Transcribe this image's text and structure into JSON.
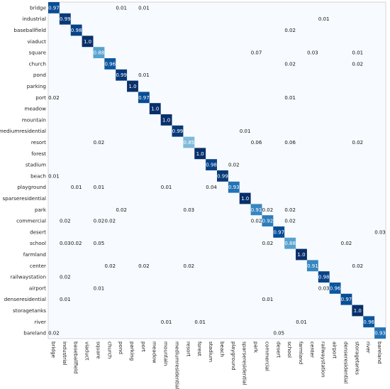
{
  "chart_data": {
    "type": "heatmap",
    "title": "",
    "xlabel": "",
    "ylabel": "",
    "colormap": "Blues",
    "value_range": [
      0,
      1
    ],
    "grid": false,
    "categories": [
      "bridge",
      "industrial",
      "baseballfield",
      "viaduct",
      "square",
      "church",
      "pond",
      "parking",
      "port",
      "meadow",
      "mountain",
      "mediumresidential",
      "resort",
      "forest",
      "stadium",
      "beach",
      "playground",
      "sparseresidential",
      "park",
      "commercial",
      "desert",
      "school",
      "farmland",
      "center",
      "railwaystation",
      "airport",
      "denseresidential",
      "storagetanks",
      "river",
      "bareland"
    ],
    "cells": [
      {
        "row": "bridge",
        "col": "bridge",
        "label": "0.97"
      },
      {
        "row": "bridge",
        "col": "pond",
        "label": "0.01"
      },
      {
        "row": "bridge",
        "col": "port",
        "label": "0.01"
      },
      {
        "row": "industrial",
        "col": "industrial",
        "label": "0.99"
      },
      {
        "row": "industrial",
        "col": "railwaystation",
        "label": "0.01"
      },
      {
        "row": "baseballfield",
        "col": "baseballfield",
        "label": "0.98"
      },
      {
        "row": "baseballfield",
        "col": "school",
        "label": "0.02"
      },
      {
        "row": "viaduct",
        "col": "viaduct",
        "label": "1.0"
      },
      {
        "row": "square",
        "col": "square",
        "label": "0.88"
      },
      {
        "row": "square",
        "col": "park",
        "label": "0.07"
      },
      {
        "row": "square",
        "col": "center",
        "label": "0.03"
      },
      {
        "row": "square",
        "col": "storagetanks",
        "label": "0.01"
      },
      {
        "row": "church",
        "col": "church",
        "label": "0.96"
      },
      {
        "row": "church",
        "col": "school",
        "label": "0.02"
      },
      {
        "row": "church",
        "col": "storagetanks",
        "label": "0.02"
      },
      {
        "row": "pond",
        "col": "pond",
        "label": "0.99"
      },
      {
        "row": "pond",
        "col": "port",
        "label": "0.01"
      },
      {
        "row": "parking",
        "col": "parking",
        "label": "1.0"
      },
      {
        "row": "port",
        "col": "bridge",
        "label": "0.02"
      },
      {
        "row": "port",
        "col": "port",
        "label": "0.97"
      },
      {
        "row": "port",
        "col": "school",
        "label": "0.01"
      },
      {
        "row": "meadow",
        "col": "meadow",
        "label": "1.0"
      },
      {
        "row": "mountain",
        "col": "mountain",
        "label": "1.0"
      },
      {
        "row": "mediumresidential",
        "col": "mediumresidential",
        "label": "0.99"
      },
      {
        "row": "mediumresidential",
        "col": "sparseresidential",
        "label": "0.01"
      },
      {
        "row": "resort",
        "col": "square",
        "label": "0.02"
      },
      {
        "row": "resort",
        "col": "resort",
        "label": "0.85"
      },
      {
        "row": "resort",
        "col": "park",
        "label": "0.06"
      },
      {
        "row": "resort",
        "col": "school",
        "label": "0.06"
      },
      {
        "row": "resort",
        "col": "storagetanks",
        "label": "0.02"
      },
      {
        "row": "forest",
        "col": "forest",
        "label": "1.0"
      },
      {
        "row": "stadium",
        "col": "stadium",
        "label": "0.98"
      },
      {
        "row": "stadium",
        "col": "playground",
        "label": "0.02"
      },
      {
        "row": "beach",
        "col": "bridge",
        "label": "0.01"
      },
      {
        "row": "beach",
        "col": "beach",
        "label": "0.99"
      },
      {
        "row": "playground",
        "col": "baseballfield",
        "label": "0.01"
      },
      {
        "row": "playground",
        "col": "square",
        "label": "0.01"
      },
      {
        "row": "playground",
        "col": "mountain",
        "label": "0.01"
      },
      {
        "row": "playground",
        "col": "stadium",
        "label": "0.04"
      },
      {
        "row": "playground",
        "col": "playground",
        "label": "0.93"
      },
      {
        "row": "sparseresidential",
        "col": "sparseresidential",
        "label": "1.0"
      },
      {
        "row": "park",
        "col": "pond",
        "label": "0.02"
      },
      {
        "row": "park",
        "col": "resort",
        "label": "0.03"
      },
      {
        "row": "park",
        "col": "park",
        "label": "0.91"
      },
      {
        "row": "park",
        "col": "commercial",
        "label": "0.02"
      },
      {
        "row": "park",
        "col": "school",
        "label": "0.02"
      },
      {
        "row": "commercial",
        "col": "industrial",
        "label": "0.02"
      },
      {
        "row": "commercial",
        "col": "square",
        "label": "0.02"
      },
      {
        "row": "commercial",
        "col": "church",
        "label": "0.02"
      },
      {
        "row": "commercial",
        "col": "park",
        "label": "0.02"
      },
      {
        "row": "commercial",
        "col": "commercial",
        "label": "0.92"
      },
      {
        "row": "commercial",
        "col": "school",
        "label": "0.02"
      },
      {
        "row": "desert",
        "col": "desert",
        "label": "0.97"
      },
      {
        "row": "desert",
        "col": "bareland",
        "label": "0.03"
      },
      {
        "row": "school",
        "col": "industrial",
        "label": "0.03"
      },
      {
        "row": "school",
        "col": "baseballfield",
        "label": "0.02"
      },
      {
        "row": "school",
        "col": "square",
        "label": "0.05"
      },
      {
        "row": "school",
        "col": "commercial",
        "label": "0.02"
      },
      {
        "row": "school",
        "col": "school",
        "label": "0.88"
      },
      {
        "row": "school",
        "col": "denseresidential",
        "label": "0.02"
      },
      {
        "row": "farmland",
        "col": "farmland",
        "label": "1.0"
      },
      {
        "row": "center",
        "col": "church",
        "label": "0.02"
      },
      {
        "row": "center",
        "col": "port",
        "label": "0.02"
      },
      {
        "row": "center",
        "col": "resort",
        "label": "0.02"
      },
      {
        "row": "center",
        "col": "center",
        "label": "0.91"
      },
      {
        "row": "center",
        "col": "storagetanks",
        "label": "0.02"
      },
      {
        "row": "railwaystation",
        "col": "industrial",
        "label": "0.02"
      },
      {
        "row": "railwaystation",
        "col": "railwaystation",
        "label": "0.98"
      },
      {
        "row": "airport",
        "col": "square",
        "label": "0.01"
      },
      {
        "row": "airport",
        "col": "railwaystation",
        "label": "0.03"
      },
      {
        "row": "airport",
        "col": "airport",
        "label": "0.96"
      },
      {
        "row": "denseresidential",
        "col": "industrial",
        "label": "0.01"
      },
      {
        "row": "denseresidential",
        "col": "commercial",
        "label": "0.01"
      },
      {
        "row": "denseresidential",
        "col": "denseresidential",
        "label": "0.97"
      },
      {
        "row": "storagetanks",
        "col": "storagetanks",
        "label": "1.0"
      },
      {
        "row": "river",
        "col": "mountain",
        "label": "0.01"
      },
      {
        "row": "river",
        "col": "forest",
        "label": "0.01"
      },
      {
        "row": "river",
        "col": "farmland",
        "label": "0.01"
      },
      {
        "row": "river",
        "col": "river",
        "label": "0.96"
      },
      {
        "row": "bareland",
        "col": "bridge",
        "label": "0.02"
      },
      {
        "row": "bareland",
        "col": "desert",
        "label": "0.05"
      },
      {
        "row": "bareland",
        "col": "bareland",
        "label": "0.93"
      }
    ]
  }
}
